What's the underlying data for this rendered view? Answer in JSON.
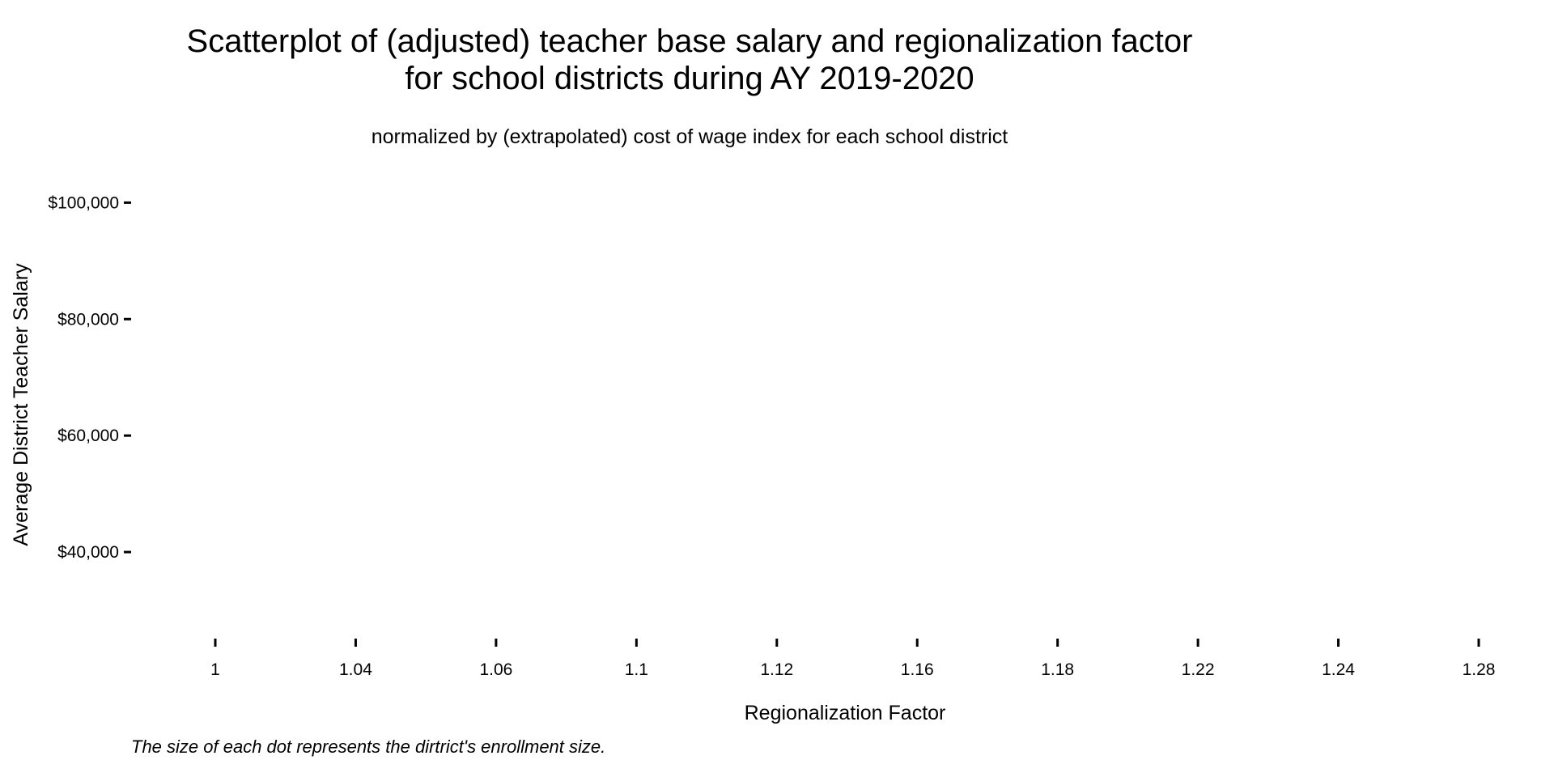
{
  "chart_data": {
    "type": "scatter",
    "title_lines": [
      "Scatterplot of (adjusted) teacher base salary and regionalization factor",
      "for school districts during AY 2019-2020"
    ],
    "subtitle": "normalized by (extrapolated) cost of wage index for each school district",
    "xlabel": "Regionalization Factor",
    "ylabel": "Average District Teacher Salary",
    "caption": "The size of each dot represents the dirtrict's enrollment size.",
    "x_ticks": [
      "1",
      "1.04",
      "1.06",
      "1.1",
      "1.12",
      "1.16",
      "1.18",
      "1.22",
      "1.24",
      "1.28"
    ],
    "y_ticks": [
      {
        "value": 100000,
        "label": "$100,000"
      },
      {
        "value": 80000,
        "label": "$80,000"
      },
      {
        "value": 60000,
        "label": "$60,000"
      },
      {
        "value": 40000,
        "label": "$40,000"
      }
    ],
    "ylim": [
      25000,
      107000
    ],
    "points": [],
    "grid": false,
    "legend": "none"
  }
}
